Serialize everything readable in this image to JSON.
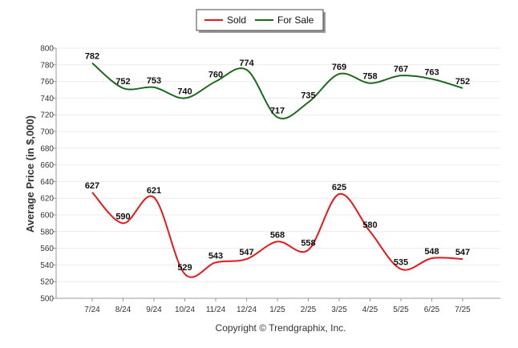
{
  "chart_data": {
    "type": "line",
    "categories": [
      "7/24",
      "8/24",
      "9/24",
      "10/24",
      "11/24",
      "12/24",
      "1/25",
      "2/25",
      "3/25",
      "4/25",
      "5/25",
      "6/25",
      "7/25"
    ],
    "series": [
      {
        "name": "Sold",
        "color": "#e31a1c",
        "values": [
          627,
          590,
          621,
          529,
          543,
          547,
          568,
          558,
          625,
          580,
          535,
          548,
          547
        ]
      },
      {
        "name": "For Sale",
        "color": "#1b6b1b",
        "values": [
          782,
          752,
          753,
          740,
          760,
          774,
          717,
          735,
          769,
          758,
          767,
          763,
          752
        ]
      }
    ],
    "ylabel": "Average Price (in $,000)",
    "xlabel": "",
    "ylim": [
      500,
      800
    ],
    "yticks": [
      500,
      520,
      540,
      560,
      580,
      600,
      620,
      640,
      660,
      680,
      700,
      720,
      740,
      760,
      780,
      800
    ],
    "grid": true,
    "legend_position": "top-center",
    "footer": "Copyright © Trendgraphix, Inc."
  }
}
